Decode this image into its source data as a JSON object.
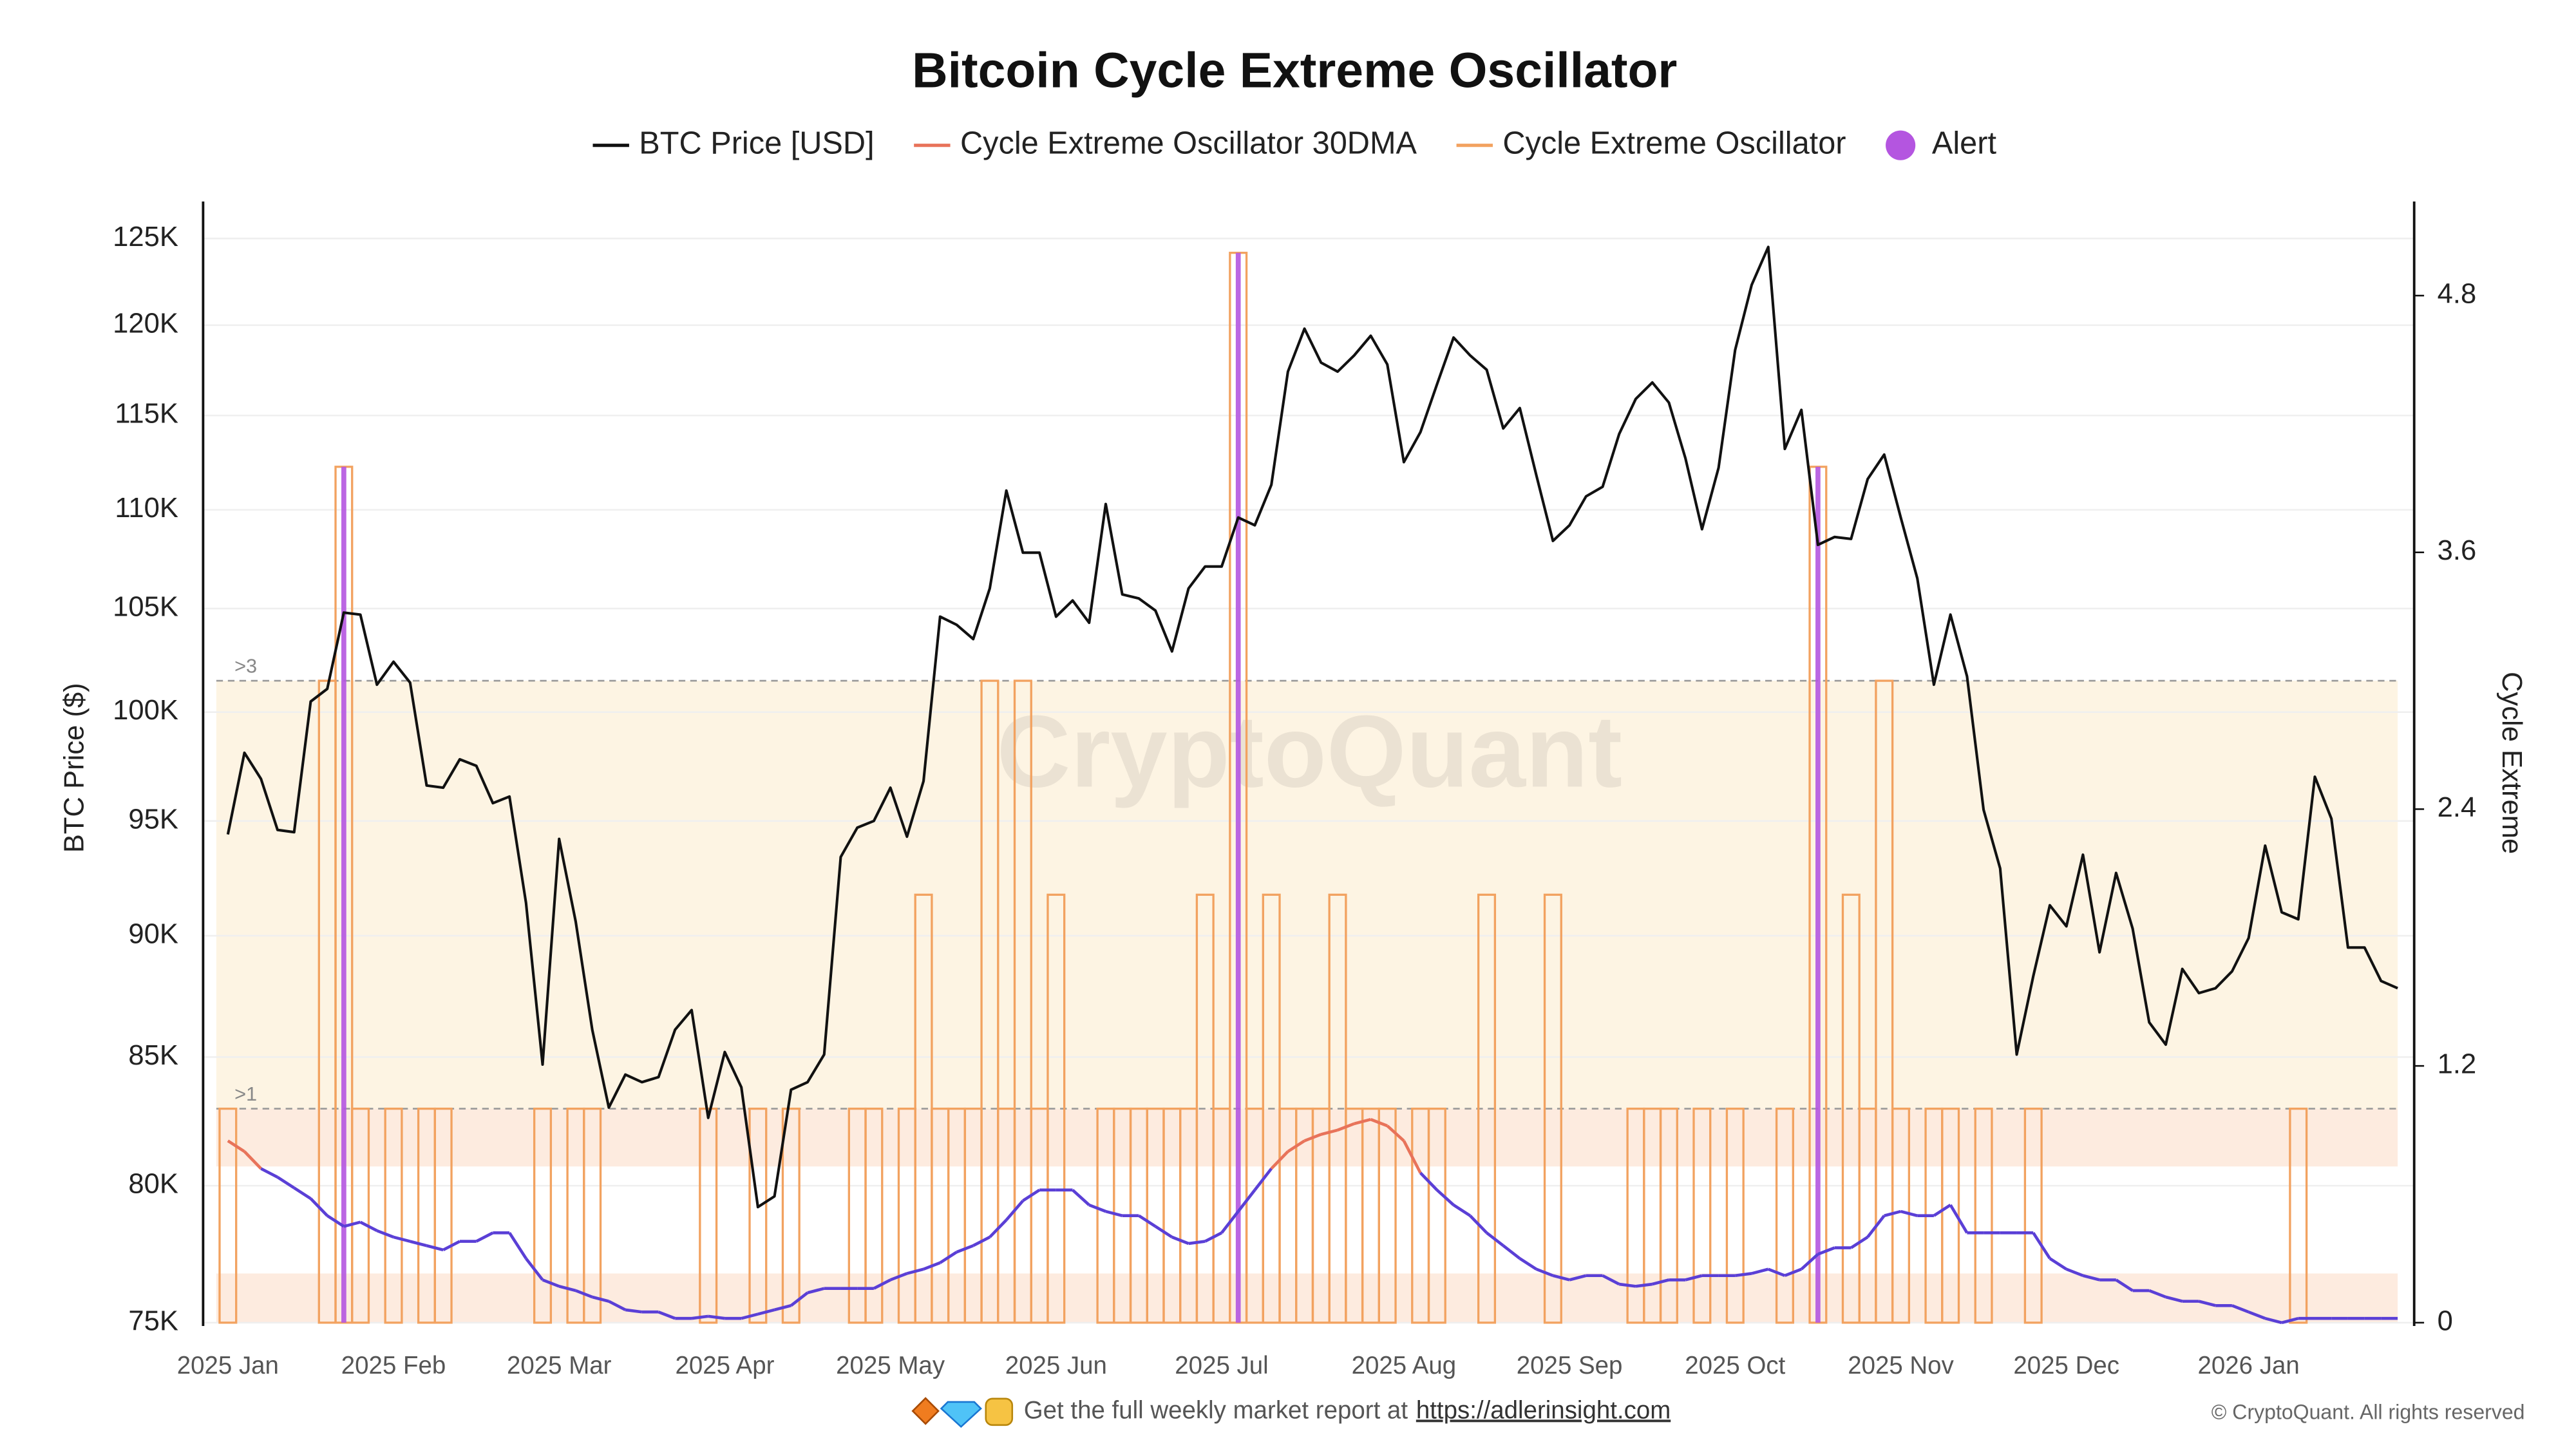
{
  "chart_data": {
    "type": "line",
    "title": "Bitcoin Cycle Extreme Oscillator",
    "ylabel": "BTC Price ($)",
    "y2label": "Cycle Extreme",
    "watermark": "CryptoQuant",
    "log_scale_y": true,
    "grid": true,
    "legend": "top",
    "categories": [
      "2025 Jan",
      null,
      null,
      null,
      null,
      null,
      null,
      null,
      null,
      null,
      "2025 Feb",
      null,
      null,
      null,
      null,
      null,
      null,
      null,
      null,
      null,
      "2025 Mar",
      null,
      null,
      null,
      null,
      null,
      null,
      null,
      null,
      null,
      "2025 Apr",
      null,
      null,
      null,
      null,
      null,
      null,
      null,
      null,
      null,
      "2025 May",
      null,
      null,
      null,
      null,
      null,
      null,
      null,
      null,
      null,
      "2025 Jun",
      null,
      null,
      null,
      null,
      null,
      null,
      null,
      null,
      null,
      "2025 Jul",
      null,
      null,
      null,
      null,
      null,
      null,
      null,
      null,
      null,
      null,
      "2025 Aug",
      null,
      null,
      null,
      null,
      null,
      null,
      null,
      null,
      null,
      "2025 Sep",
      null,
      null,
      null,
      null,
      null,
      null,
      null,
      null,
      null,
      "2025 Oct",
      null,
      null,
      null,
      null,
      null,
      null,
      null,
      null,
      null,
      "2025 Nov",
      null,
      null,
      null,
      null,
      null,
      null,
      null,
      null,
      null,
      "2025 Dec",
      null,
      null,
      null,
      null,
      null,
      null,
      null,
      null,
      null,
      null,
      "2026 Jan",
      null,
      null,
      null,
      null,
      null,
      null,
      null,
      null,
      null
    ],
    "ylim": [
      75000,
      127200
    ],
    "yticks": [
      {
        "value": 75000,
        "label": "75K"
      },
      {
        "value": 80000,
        "label": "80K"
      },
      {
        "value": 85000,
        "label": "85K"
      },
      {
        "value": 90000,
        "label": "90K"
      },
      {
        "value": 95000,
        "label": "95K"
      },
      {
        "value": 100000,
        "label": "100K"
      },
      {
        "value": 105000,
        "label": "105K"
      },
      {
        "value": 110000,
        "label": "110K"
      },
      {
        "value": 115000,
        "label": "115K"
      },
      {
        "value": 120000,
        "label": "120K"
      },
      {
        "value": 125000,
        "label": "125K"
      }
    ],
    "y2lim": [
      0,
      5.24
    ],
    "y2ticks": [
      0,
      1.2,
      2.4,
      3.6,
      4.8
    ],
    "thresholds": [
      {
        "value": 3,
        "label": ">3"
      },
      {
        "value": 1,
        "label": ">1"
      }
    ],
    "bands": [
      {
        "from": 1,
        "to": 3,
        "color": "#fdf4e3"
      },
      {
        "from": 0.73,
        "to": 1,
        "color": "#fdebdf"
      },
      {
        "from": 0,
        "to": 0.23,
        "color": "#fdebdf"
      }
    ],
    "series": [
      {
        "name": "BTC Price [USD]",
        "color": "#111111",
        "mark": "line",
        "axis": "y",
        "values": [
          94400,
          98100,
          96900,
          94600,
          94500,
          100500,
          101100,
          104800,
          104700,
          101300,
          102400,
          101400,
          96600,
          96500,
          97800,
          97500,
          95800,
          96100,
          91400,
          84700,
          94200,
          90600,
          86100,
          83000,
          84300,
          84000,
          84200,
          86100,
          86900,
          82600,
          85200,
          83800,
          79200,
          79600,
          83700,
          84000,
          85100,
          93400,
          94700,
          95000,
          96500,
          94300,
          96800,
          104600,
          104200,
          103500,
          106000,
          111000,
          107800,
          107800,
          104600,
          105400,
          104300,
          110300,
          105700,
          105500,
          104900,
          102900,
          106000,
          107100,
          107100,
          109600,
          109200,
          111300,
          117400,
          119800,
          117900,
          117400,
          118300,
          119400,
          117800,
          112500,
          114100,
          116700,
          119300,
          118300,
          117500,
          114300,
          115400,
          111800,
          108400,
          109200,
          110700,
          111200,
          114000,
          115900,
          116800,
          115700,
          112700,
          109000,
          112200,
          118600,
          122300,
          124500,
          113200,
          115300,
          108200,
          108600,
          108500,
          111600,
          112900,
          109600,
          106500,
          101300,
          104700,
          101700,
          95500,
          92900,
          85100,
          88300,
          91300,
          90400,
          93500,
          89300,
          92700,
          90300,
          86400,
          85500,
          88600,
          87600,
          87800,
          88500,
          89900,
          93900,
          91000,
          90700,
          97000,
          95100,
          89500,
          89500,
          88100,
          87800
        ]
      },
      {
        "name": "Cycle Extreme Oscillator 30DMA",
        "color": "#e8735a",
        "low_color": "#5a3fd6",
        "color_threshold": 0.73,
        "mark": "zoned-line",
        "axis": "y2",
        "values": [
          0.85,
          0.8,
          0.72,
          0.68,
          0.63,
          0.58,
          0.5,
          0.45,
          0.47,
          0.43,
          0.4,
          0.38,
          0.36,
          0.34,
          0.38,
          0.38,
          0.42,
          0.42,
          0.3,
          0.2,
          0.17,
          0.15,
          0.12,
          0.1,
          0.06,
          0.05,
          0.05,
          0.02,
          0.02,
          0.03,
          0.02,
          0.02,
          0.04,
          0.06,
          0.08,
          0.14,
          0.16,
          0.16,
          0.16,
          0.16,
          0.2,
          0.23,
          0.25,
          0.28,
          0.33,
          0.36,
          0.4,
          0.48,
          0.57,
          0.62,
          0.62,
          0.62,
          0.55,
          0.52,
          0.5,
          0.5,
          0.45,
          0.4,
          0.37,
          0.38,
          0.42,
          0.52,
          0.62,
          0.72,
          0.8,
          0.85,
          0.88,
          0.9,
          0.93,
          0.95,
          0.92,
          0.85,
          0.7,
          0.62,
          0.55,
          0.5,
          0.42,
          0.36,
          0.3,
          0.25,
          0.22,
          0.2,
          0.22,
          0.22,
          0.18,
          0.17,
          0.18,
          0.2,
          0.2,
          0.22,
          0.22,
          0.22,
          0.23,
          0.25,
          0.22,
          0.25,
          0.32,
          0.35,
          0.35,
          0.4,
          0.5,
          0.52,
          0.5,
          0.5,
          0.55,
          0.42,
          0.42,
          0.42,
          0.42,
          0.42,
          0.3,
          0.25,
          0.22,
          0.2,
          0.2,
          0.15,
          0.15,
          0.12,
          0.1,
          0.1,
          0.08,
          0.08,
          0.05,
          0.02,
          0,
          0.02,
          0.02,
          0.02,
          0.02,
          0.02,
          0.02,
          0.02
        ]
      },
      {
        "name": "Cycle Extreme Oscillator",
        "color": "#f2a260",
        "mark": "step-bars",
        "axis": "y2",
        "values": [
          1,
          0,
          0,
          0,
          0,
          0,
          3,
          4,
          1,
          0,
          1,
          0,
          1,
          1,
          0,
          0,
          0,
          0,
          0,
          1,
          0,
          1,
          1,
          0,
          0,
          0,
          0,
          0,
          0,
          1,
          0,
          0,
          1,
          0,
          1,
          0,
          0,
          0,
          1,
          1,
          0,
          1,
          2,
          1,
          1,
          1,
          3,
          1,
          3,
          1,
          2,
          0,
          0,
          1,
          1,
          1,
          1,
          1,
          1,
          2,
          1,
          5,
          1,
          2,
          1,
          1,
          1,
          2,
          1,
          1,
          1,
          0,
          1,
          1,
          0,
          0,
          2,
          0,
          0,
          0,
          2,
          0,
          0,
          0,
          0,
          1,
          1,
          1,
          0,
          1,
          0,
          1,
          0,
          0,
          1,
          0,
          4,
          0,
          2,
          1,
          3,
          1,
          0,
          1,
          1,
          0,
          1,
          0,
          0,
          1,
          0,
          0,
          0,
          0,
          0,
          0,
          0,
          0,
          0,
          0,
          0,
          0,
          0,
          0,
          0,
          1,
          0,
          0,
          0,
          0,
          0,
          0
        ]
      },
      {
        "name": "Alert",
        "color": "#b455e0",
        "mark": "alert-bars",
        "axis": "y2",
        "values": [
          null,
          null,
          null,
          null,
          null,
          null,
          null,
          4,
          null,
          null,
          null,
          null,
          null,
          null,
          null,
          null,
          null,
          null,
          null,
          null,
          null,
          null,
          null,
          null,
          null,
          null,
          null,
          null,
          null,
          null,
          null,
          null,
          null,
          null,
          null,
          null,
          null,
          null,
          null,
          null,
          null,
          null,
          null,
          null,
          null,
          null,
          null,
          null,
          null,
          null,
          null,
          null,
          null,
          null,
          null,
          null,
          null,
          null,
          null,
          null,
          null,
          5,
          null,
          null,
          null,
          null,
          null,
          null,
          null,
          null,
          null,
          null,
          null,
          null,
          null,
          null,
          null,
          null,
          null,
          null,
          null,
          null,
          null,
          null,
          null,
          null,
          null,
          null,
          null,
          null,
          null,
          null,
          null,
          null,
          null,
          null,
          4,
          null,
          null,
          null,
          null,
          null,
          null,
          null,
          null,
          null,
          null,
          null,
          null,
          null,
          null,
          null,
          null,
          null,
          null,
          null,
          null,
          null,
          null,
          null,
          null,
          null,
          null,
          null,
          null,
          null,
          null,
          null,
          null,
          null,
          null,
          null
        ]
      }
    ],
    "footer": {
      "text": "Get the full weekly market report at",
      "link": "https://adlerinsight.com",
      "copyright": "© CryptoQuant. All rights reserved"
    }
  }
}
